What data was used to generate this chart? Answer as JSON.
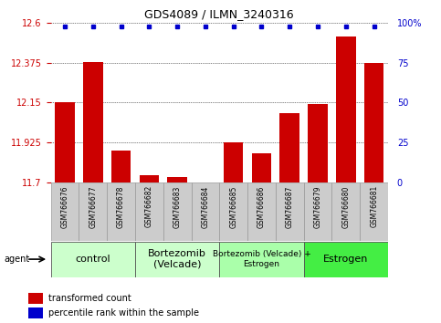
{
  "title": "GDS4089 / ILMN_3240316",
  "samples": [
    "GSM766676",
    "GSM766677",
    "GSM766678",
    "GSM766682",
    "GSM766683",
    "GSM766684",
    "GSM766685",
    "GSM766686",
    "GSM766687",
    "GSM766679",
    "GSM766680",
    "GSM766681"
  ],
  "bar_values": [
    12.15,
    12.38,
    11.88,
    11.74,
    11.73,
    11.685,
    11.925,
    11.865,
    12.09,
    12.14,
    12.52,
    12.375
  ],
  "ylim": [
    11.7,
    12.6
  ],
  "yticks": [
    11.7,
    11.925,
    12.15,
    12.375,
    12.6
  ],
  "ytick_labels": [
    "11.7",
    "11.925",
    "12.15",
    "12.375",
    "12.6"
  ],
  "right_yticks": [
    0,
    25,
    50,
    75,
    100
  ],
  "right_ytick_labels": [
    "0",
    "25",
    "50",
    "75",
    "100%"
  ],
  "bar_color": "#cc0000",
  "dot_color": "#0000cc",
  "groups": [
    {
      "label": "control",
      "start": 0,
      "end": 3,
      "color": "#ccffcc",
      "fontsize": 8
    },
    {
      "label": "Bortezomib\n(Velcade)",
      "start": 3,
      "end": 6,
      "color": "#ccffcc",
      "fontsize": 8
    },
    {
      "label": "Bortezomib (Velcade) +\nEstrogen",
      "start": 6,
      "end": 9,
      "color": "#aaffaa",
      "fontsize": 6.5
    },
    {
      "label": "Estrogen",
      "start": 9,
      "end": 12,
      "color": "#44ee44",
      "fontsize": 8
    }
  ],
  "agent_label": "agent",
  "legend_items": [
    {
      "color": "#cc0000",
      "label": "transformed count"
    },
    {
      "color": "#0000cc",
      "label": "percentile rank within the sample"
    }
  ],
  "background_color": "#ffffff",
  "label_bg_color": "#cccccc",
  "grid_color": "#000000",
  "left_tick_color": "#cc0000",
  "right_tick_color": "#0000cc"
}
